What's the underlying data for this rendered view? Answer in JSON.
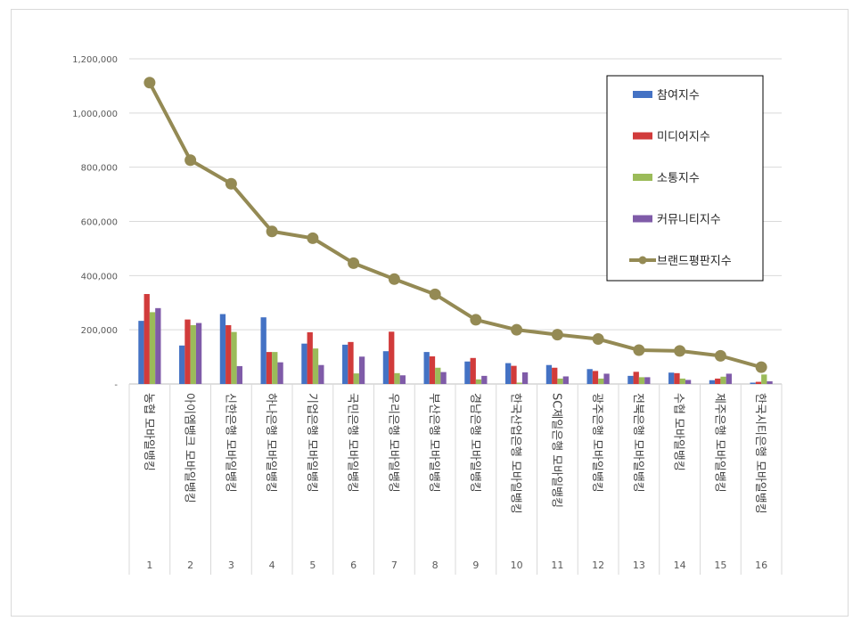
{
  "chart_data": {
    "type": "bar",
    "categories": [
      {
        "name": "농협 모바일뱅킹",
        "rank": "1"
      },
      {
        "name": "아이엠뱅크 모바일뱅킹",
        "rank": "2"
      },
      {
        "name": "신한은행 모바일뱅킹",
        "rank": "3"
      },
      {
        "name": "하나은행 모바일뱅킹",
        "rank": "4"
      },
      {
        "name": "기업은행 모바일뱅킹",
        "rank": "5"
      },
      {
        "name": "국민은행 모바일뱅킹",
        "rank": "6"
      },
      {
        "name": "우리은행 모바일뱅킹",
        "rank": "7"
      },
      {
        "name": "부산은행 모바일뱅킹",
        "rank": "8"
      },
      {
        "name": "경남은행 모바일뱅킹",
        "rank": "9"
      },
      {
        "name": "한국산업은행 모바일뱅킹",
        "rank": "10"
      },
      {
        "name": "SC제일은행 모바일뱅킹",
        "rank": "11"
      },
      {
        "name": "광주은행 모바일뱅킹",
        "rank": "12"
      },
      {
        "name": "전북은행 모바일뱅킹",
        "rank": "13"
      },
      {
        "name": "수협 모바일뱅킹",
        "rank": "14"
      },
      {
        "name": "제주은행 모바일뱅킹",
        "rank": "15"
      },
      {
        "name": "한국시티은행 모바일뱅킹",
        "rank": "16"
      }
    ],
    "series": [
      {
        "name": "참여지수",
        "type": "bar",
        "color": "#4472c4",
        "values": [
          233000,
          142000,
          258000,
          246000,
          149000,
          145000,
          121000,
          118000,
          83000,
          77000,
          70000,
          55000,
          30000,
          42000,
          14000,
          5000
        ]
      },
      {
        "name": "미디어지수",
        "type": "bar",
        "color": "#d13b3b",
        "values": [
          332000,
          238000,
          217000,
          118000,
          191000,
          155000,
          193000,
          102000,
          96000,
          67000,
          60000,
          48000,
          45000,
          40000,
          20000,
          8000
        ]
      },
      {
        "name": "소통지수",
        "type": "bar",
        "color": "#9bbb59",
        "values": [
          265000,
          217000,
          192000,
          118000,
          131000,
          39000,
          40000,
          60000,
          17000,
          5000,
          20000,
          20000,
          25000,
          20000,
          27000,
          35000
        ]
      },
      {
        "name": "커뮤니티지수",
        "type": "bar",
        "color": "#7f5ba8",
        "values": [
          280000,
          225000,
          66000,
          80000,
          70000,
          101000,
          32000,
          44000,
          30000,
          43000,
          28000,
          38000,
          25000,
          15000,
          38000,
          10000
        ]
      },
      {
        "name": "브랜드평판지수",
        "type": "line",
        "color": "#948a54",
        "values": [
          1112000,
          826000,
          739000,
          563000,
          538000,
          446000,
          387000,
          331000,
          237000,
          200000,
          182000,
          166000,
          125000,
          122000,
          104000,
          62000
        ]
      }
    ],
    "y_axis": {
      "min": 0,
      "max": 1200000,
      "ticks": [
        "-",
        "200,000",
        "400,000",
        "600,000",
        "800,000",
        "1,000,000",
        "1,200,000"
      ]
    },
    "grid": true,
    "legend_position": "top-right",
    "title": "",
    "xlabel": "",
    "ylabel": ""
  }
}
